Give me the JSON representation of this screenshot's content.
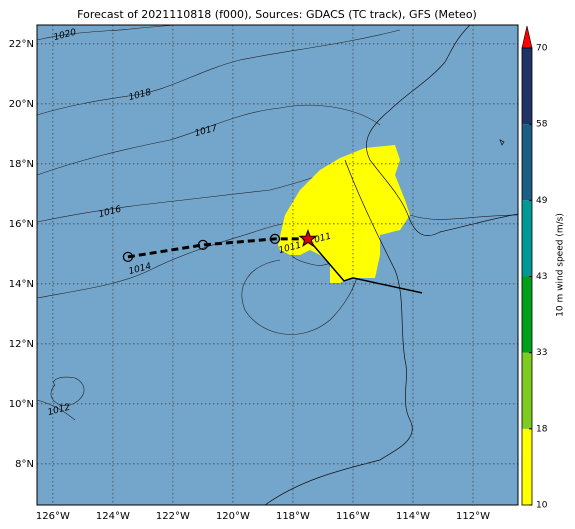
{
  "chart_data": {
    "type": "track_map",
    "title": "Forecast of 2021110818 (f000), Sources: GDACS (TC track), GFS (Meteo)",
    "xlim": [
      -126.53,
      -110.5
    ],
    "ylim": [
      6.63,
      22.63
    ],
    "xticks": [
      {
        "value": -126,
        "label": "126°W"
      },
      {
        "value": -124,
        "label": "124°W"
      },
      {
        "value": -122,
        "label": "122°W"
      },
      {
        "value": -120,
        "label": "120°W"
      },
      {
        "value": -118,
        "label": "118°W"
      },
      {
        "value": -116,
        "label": "116°W"
      },
      {
        "value": -114,
        "label": "114°W"
      },
      {
        "value": -112,
        "label": "112°W"
      }
    ],
    "yticks": [
      {
        "value": 8,
        "label": "8°N"
      },
      {
        "value": 10,
        "label": "10°N"
      },
      {
        "value": 12,
        "label": "12°N"
      },
      {
        "value": 14,
        "label": "14°N"
      },
      {
        "value": 16,
        "label": "16°N"
      },
      {
        "value": 18,
        "label": "18°N"
      },
      {
        "value": 20,
        "label": "20°N"
      },
      {
        "value": 22,
        "label": "22°N"
      }
    ],
    "grid": true,
    "observed_track": {
      "lon": [
        -123.5,
        -121,
        -118.6,
        -117.5
      ],
      "lat": [
        14.9,
        15.3,
        15.5,
        15.5
      ]
    },
    "forecast_track": {
      "lon": [
        -117.5,
        -116.3,
        -116,
        -113.7
      ],
      "lat": [
        15.5,
        14.1,
        14.2,
        13.7
      ]
    },
    "isobar_labels": [
      {
        "text": "1020",
        "lon": -125.6,
        "lat": 22.3
      },
      {
        "text": "1018",
        "lon": -123.1,
        "lat": 20.3
      },
      {
        "text": "1017",
        "lon": -120.9,
        "lat": 19.1
      },
      {
        "text": "1016",
        "lon": -124.1,
        "lat": 16.4
      },
      {
        "text": "1014",
        "lon": -123.1,
        "lat": 14.5
      },
      {
        "text": "1012",
        "lon": -125.8,
        "lat": 9.8
      },
      {
        "text": "1011",
        "lon": -118.1,
        "lat": 15.2
      },
      {
        "text": "1011",
        "lon": -117.1,
        "lat": 15.5
      }
    ],
    "colorbar": {
      "label": "10 m wind speed (m/s)",
      "levels": [
        10,
        18,
        33,
        43,
        49,
        58,
        70
      ],
      "colors": [
        "#ffff00",
        "#7fcc1f",
        "#00a01a",
        "#009a94",
        "#1b5e84",
        "#1f3366"
      ],
      "extend_color": "#ff0000"
    }
  }
}
